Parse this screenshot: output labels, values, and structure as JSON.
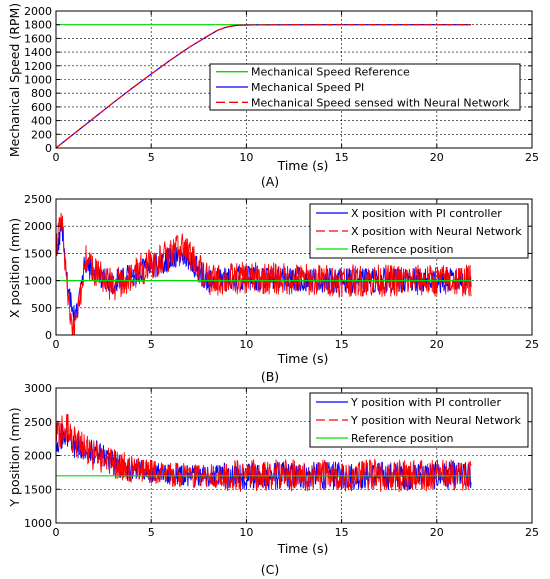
{
  "chart_data": [
    {
      "type": "line",
      "xlabel": "Time (s)",
      "ylabel": "Mechanical Speed (RPM)",
      "caption": "(A)",
      "xlim": [
        0,
        25
      ],
      "ylim": [
        0,
        2000
      ],
      "xticks": [
        "0",
        "5",
        "10",
        "15",
        "20",
        "25"
      ],
      "yticks": [
        "0",
        "200",
        "400",
        "600",
        "800",
        "1000",
        "1200",
        "1400",
        "1600",
        "1800",
        "2000"
      ],
      "grid": true,
      "legend_position": "right",
      "series": [
        {
          "name": "Mechanical Speed Reference",
          "color": "#00dd00",
          "style": "solid",
          "x": [
            0,
            21.8
          ],
          "y": [
            1800,
            1800
          ]
        },
        {
          "name": "Mechanical Speed PI",
          "color": "#0000ff",
          "style": "solid",
          "x": [
            0,
            1,
            2,
            3,
            4,
            5,
            6,
            7,
            8,
            8.5,
            9,
            9.5,
            10,
            12,
            15,
            18,
            21.8
          ],
          "y": [
            0,
            220,
            440,
            660,
            875,
            1080,
            1280,
            1470,
            1640,
            1720,
            1770,
            1790,
            1795,
            1798,
            1800,
            1800,
            1800
          ]
        },
        {
          "name": "Mechanical Speed sensed with Neural Network",
          "color": "#ff0000",
          "style": "dashed",
          "x": [
            0,
            1,
            2,
            3,
            4,
            5,
            6,
            7,
            8,
            8.5,
            9,
            9.5,
            10,
            12,
            15,
            18,
            21.8
          ],
          "y": [
            0,
            220,
            440,
            660,
            875,
            1080,
            1280,
            1470,
            1640,
            1720,
            1770,
            1790,
            1795,
            1798,
            1800,
            1800,
            1800
          ]
        }
      ]
    },
    {
      "type": "line",
      "xlabel": "Time (s)",
      "ylabel": "X position (mm)",
      "caption": "(B)",
      "xlim": [
        0,
        25
      ],
      "ylim": [
        0,
        2500
      ],
      "xticks": [
        "0",
        "5",
        "10",
        "15",
        "20",
        "25"
      ],
      "yticks": [
        "0",
        "500",
        "1000",
        "1500",
        "2000",
        "2500"
      ],
      "grid": true,
      "legend_position": "top-right",
      "series": [
        {
          "name": "X position with PI controller",
          "color": "#0000ff",
          "style": "solid",
          "x": [
            0,
            0.3,
            0.6,
            0.9,
            1.2,
            1.5,
            2,
            3,
            5,
            6.7,
            8,
            10,
            15,
            21.8
          ],
          "y": [
            1500,
            2050,
            900,
            350,
            600,
            1300,
            1150,
            950,
            1250,
            1500,
            1000,
            1050,
            1000,
            1000
          ],
          "noise_amplitude": 230
        },
        {
          "name": "X position with Neural Network",
          "color": "#ff0000",
          "style": "dashed",
          "x": [
            0,
            0.3,
            0.6,
            0.9,
            1.2,
            1.5,
            2,
            3,
            5,
            6.7,
            8,
            10,
            15,
            21.8
          ],
          "y": [
            1600,
            2150,
            800,
            100,
            500,
            1400,
            1150,
            900,
            1300,
            1600,
            1000,
            1050,
            1000,
            1000
          ],
          "noise_amplitude": 300
        },
        {
          "name": "Reference position",
          "color": "#00dd00",
          "style": "solid",
          "x": [
            0,
            21.8
          ],
          "y": [
            1000,
            1000
          ]
        }
      ]
    },
    {
      "type": "line",
      "xlabel": "Time (s)",
      "ylabel": "Y position (mm)",
      "caption": "(C)",
      "xlim": [
        0,
        25
      ],
      "ylim": [
        1000,
        3000
      ],
      "xticks": [
        "0",
        "5",
        "10",
        "15",
        "20",
        "25"
      ],
      "yticks": [
        "1000",
        "1500",
        "2000",
        "2500",
        "3000"
      ],
      "grid": true,
      "legend_position": "top-right",
      "series": [
        {
          "name": "Y position with PI controller",
          "color": "#0000ff",
          "style": "solid",
          "x": [
            0,
            0.5,
            1,
            2,
            3,
            4,
            5,
            6,
            7,
            8,
            8.8,
            10,
            15,
            21.8
          ],
          "y": [
            2200,
            2350,
            2150,
            2050,
            1900,
            1800,
            1750,
            1720,
            1700,
            1700,
            1700,
            1700,
            1700,
            1700
          ],
          "noise_amplitude": 200
        },
        {
          "name": "Y position with Neural Network",
          "color": "#ff0000",
          "style": "dashed",
          "x": [
            0,
            0.5,
            1,
            2,
            3,
            4,
            5,
            6,
            7,
            8,
            8.8,
            10,
            15,
            21.8
          ],
          "y": [
            2250,
            2450,
            2200,
            2000,
            1900,
            1800,
            1750,
            1720,
            1700,
            1700,
            1700,
            1700,
            1700,
            1700
          ],
          "noise_amplitude": 230
        },
        {
          "name": "Reference position",
          "color": "#00dd00",
          "style": "solid",
          "x": [
            0,
            21.8
          ],
          "y": [
            1700,
            1700
          ]
        }
      ]
    }
  ]
}
